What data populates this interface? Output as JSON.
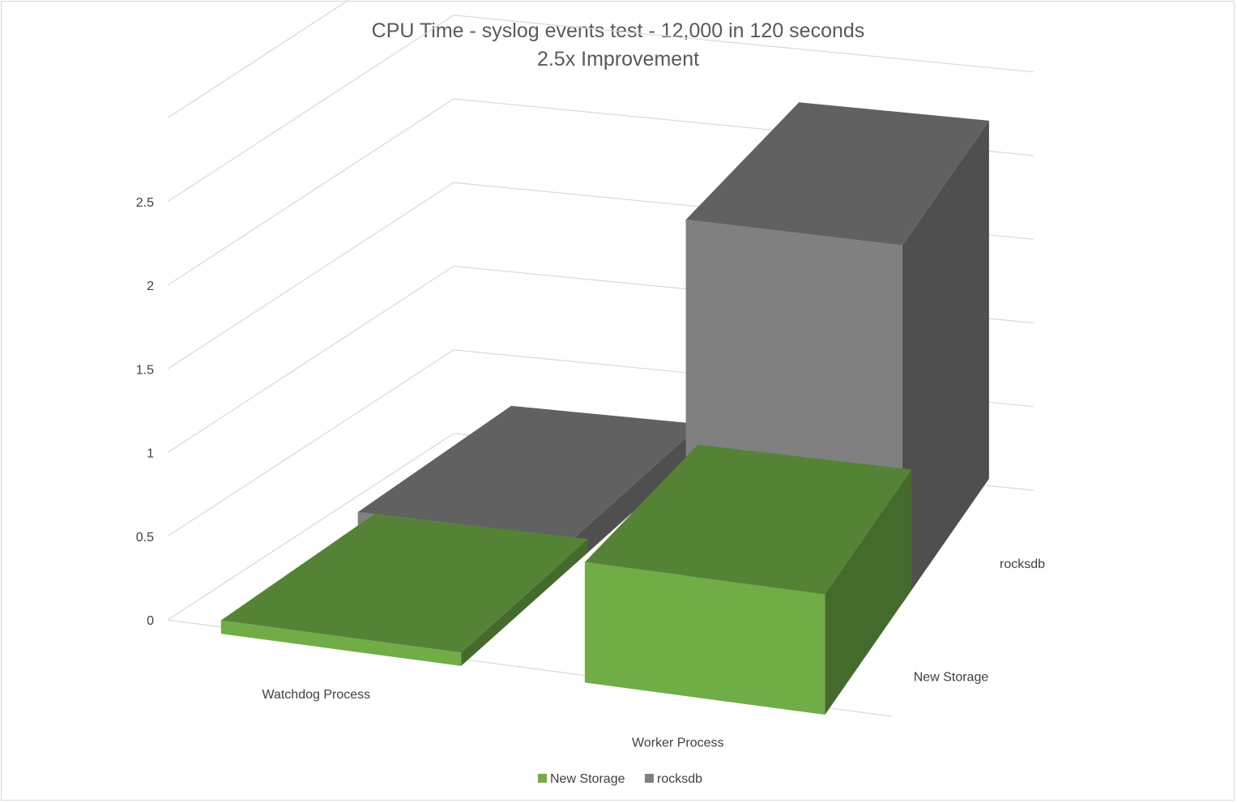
{
  "chart_data": {
    "type": "bar",
    "variant": "3d-column",
    "title": "CPU Time - syslog events test - 12,000 in 120 seconds",
    "subtitle": "2.5x Improvement",
    "categories": [
      "Watchdog Process",
      "Worker Process"
    ],
    "series": [
      {
        "name": "New Storage",
        "values": [
          0.08,
          0.72
        ],
        "color": "#70ad47"
      },
      {
        "name": "rocksdb",
        "values": [
          0.16,
          2.14
        ],
        "color": "#808080"
      }
    ],
    "y_ticks": [
      "0",
      "0.5",
      "1",
      "1.5",
      "2",
      "2.5"
    ],
    "depth_labels": [
      "New Storage",
      "rocksdb"
    ],
    "ylim": [
      0,
      3
    ],
    "grid": true,
    "legend_position": "bottom"
  }
}
